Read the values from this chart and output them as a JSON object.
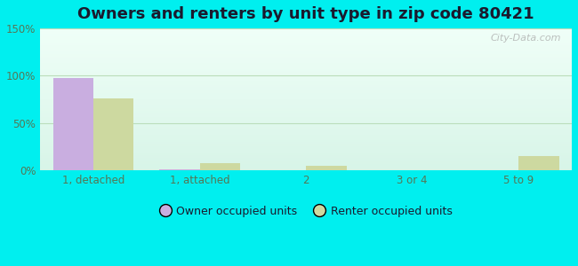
{
  "title": "Owners and renters by unit type in zip code 80421",
  "categories": [
    "1, detached",
    "1, attached",
    "2",
    "3 or 4",
    "5 to 9"
  ],
  "owner_values": [
    98,
    1,
    0,
    0,
    0
  ],
  "renter_values": [
    76,
    8,
    5,
    0,
    15
  ],
  "owner_color": "#c9aee0",
  "renter_color": "#cdd9a0",
  "owner_label": "Owner occupied units",
  "renter_label": "Renter occupied units",
  "ylim": [
    0,
    150
  ],
  "yticks": [
    0,
    50,
    100,
    150
  ],
  "ytick_labels": [
    "0%",
    "50%",
    "100%",
    "150%"
  ],
  "plot_bg_top": "#d8f5e8",
  "plot_bg_bottom": "#f0fff8",
  "outer_bg": "#00efef",
  "title_fontsize": 13,
  "bar_width": 0.38,
  "watermark": "City-Data.com",
  "tick_color": "#557755",
  "grid_color": "#bbddbb",
  "title_color": "#1a1a2e"
}
